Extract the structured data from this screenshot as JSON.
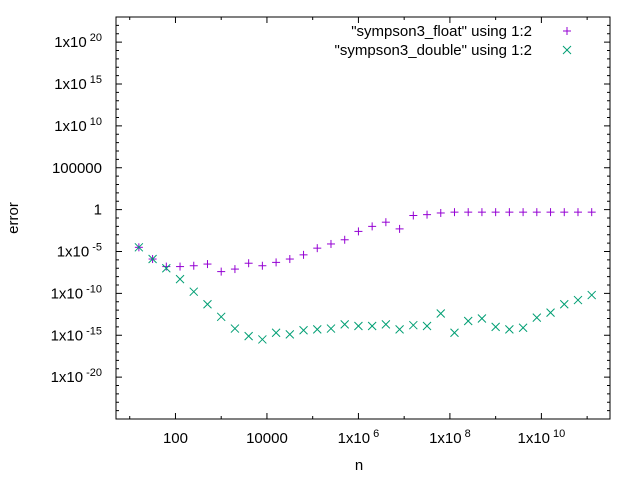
{
  "chart_data": {
    "type": "scatter",
    "title": "",
    "xlabel": "n",
    "ylabel": "error",
    "xscale": "log",
    "yscale": "log",
    "xlim_log10": [
      0.7,
      11.5
    ],
    "ylim_log10": [
      -25,
      23
    ],
    "grid": false,
    "legend_position": "top-right",
    "xticks": [
      {
        "log10": 2,
        "base": "100",
        "sup": ""
      },
      {
        "log10": 4,
        "base": "10000",
        "sup": ""
      },
      {
        "log10": 6,
        "base": "1x10",
        "sup": "6"
      },
      {
        "log10": 8,
        "base": "1x10",
        "sup": "8"
      },
      {
        "log10": 10,
        "base": "1x10",
        "sup": "10"
      }
    ],
    "yticks": [
      {
        "log10": 20,
        "base": "1x10",
        "sup": "20"
      },
      {
        "log10": 15,
        "base": "1x10",
        "sup": "15"
      },
      {
        "log10": 10,
        "base": "1x10",
        "sup": "10"
      },
      {
        "log10": 5,
        "base": "100000",
        "sup": ""
      },
      {
        "log10": 0,
        "base": "1",
        "sup": ""
      },
      {
        "log10": -5,
        "base": "1x10",
        "sup": "-5"
      },
      {
        "log10": -10,
        "base": "1x10",
        "sup": "-10"
      },
      {
        "log10": -15,
        "base": "1x10",
        "sup": "-15"
      },
      {
        "log10": -20,
        "base": "1x10",
        "sup": "-20"
      }
    ],
    "series": [
      {
        "name": "\"sympson3_float\" using 1:2",
        "marker": "plus",
        "color": "#9400d3",
        "log10_x": [
          1.2,
          1.5,
          1.8,
          2.1,
          2.4,
          2.7,
          3.0,
          3.3,
          3.6,
          3.9,
          4.2,
          4.5,
          4.8,
          5.1,
          5.4,
          5.7,
          6.0,
          6.3,
          6.6,
          6.9,
          7.2,
          7.5,
          7.8,
          8.1,
          8.4,
          8.7,
          9.0,
          9.3,
          9.6,
          9.9,
          10.2,
          10.5,
          10.8,
          11.1
        ],
        "log10_y": [
          -4.5,
          -5.9,
          -6.8,
          -6.8,
          -6.7,
          -6.5,
          -7.4,
          -7.1,
          -6.4,
          -6.7,
          -6.3,
          -5.9,
          -5.4,
          -4.6,
          -4.1,
          -3.6,
          -2.6,
          -2.0,
          -1.5,
          -2.3,
          -0.7,
          -0.6,
          -0.4,
          -0.3,
          -0.3,
          -0.3,
          -0.3,
          -0.3,
          -0.3,
          -0.3,
          -0.3,
          -0.3,
          -0.3,
          -0.3
        ]
      },
      {
        "name": "\"sympson3_double\" using 1:2",
        "marker": "cross",
        "color": "#009e73",
        "log10_x": [
          1.2,
          1.5,
          1.8,
          2.1,
          2.4,
          2.7,
          3.0,
          3.3,
          3.6,
          3.9,
          4.2,
          4.5,
          4.8,
          5.1,
          5.4,
          5.7,
          6.0,
          6.3,
          6.6,
          6.9,
          7.2,
          7.5,
          7.8,
          8.1,
          8.4,
          8.7,
          9.0,
          9.3,
          9.6,
          9.9,
          10.2,
          10.5,
          10.8,
          11.1
        ],
        "log10_y": [
          -4.5,
          -5.9,
          -7.0,
          -8.3,
          -9.8,
          -11.3,
          -12.8,
          -14.2,
          -15.1,
          -15.5,
          -14.7,
          -14.9,
          -14.4,
          -14.3,
          -14.2,
          -13.7,
          -13.9,
          -13.9,
          -13.7,
          -14.3,
          -13.8,
          -13.9,
          -12.4,
          -14.7,
          -13.3,
          -13.0,
          -14.0,
          -14.3,
          -14.1,
          -12.9,
          -12.3,
          -11.3,
          -10.8,
          -10.2
        ]
      }
    ]
  }
}
